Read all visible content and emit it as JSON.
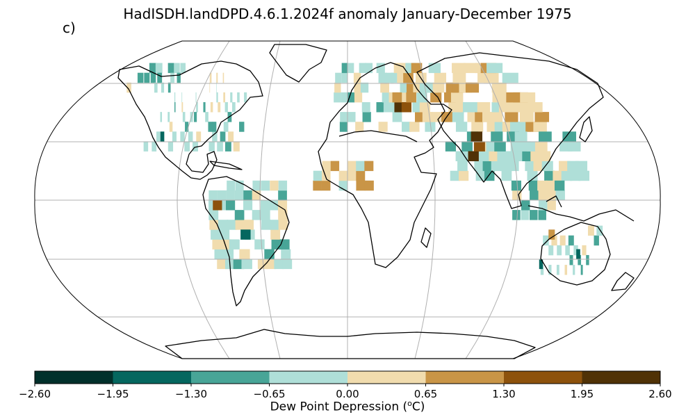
{
  "title": "HadISDH.landDPD.4.6.1.2024f anomaly January-December 1975",
  "panel_label": "c)",
  "colorbar": {
    "label_prefix": "Dew Point Depression (",
    "label_sup": "o",
    "label_suffix": "C)",
    "ticks": [
      "−2.60",
      "−1.95",
      "−1.30",
      "−0.65",
      "0.00",
      "0.65",
      "1.30",
      "1.95",
      "2.60"
    ],
    "colors": [
      "#01302b",
      "#05675f",
      "#48a597",
      "#afdfd8",
      "#f1dcae",
      "#c99547",
      "#8d520c",
      "#503206"
    ]
  },
  "chart_data": {
    "type": "heatmap",
    "projection": "Robinson",
    "variable": "Dew Point Depression anomaly",
    "units": "°C",
    "period": "January-December 1975",
    "scale": {
      "min": -2.6,
      "max": 2.6,
      "step": 0.65
    },
    "grid_resolution_deg": 5,
    "regional_anomalies": [
      {
        "lon": 35,
        "lat": 47.5,
        "value": 2.2
      },
      {
        "lon": 40,
        "lat": 47.5,
        "value": 1.6
      },
      {
        "lon": 45,
        "lat": 52.5,
        "value": 1.0
      },
      {
        "lon": 35,
        "lat": 52.5,
        "value": 1.0
      },
      {
        "lon": 75,
        "lat": 22.5,
        "value": 2.2
      },
      {
        "lon": 80,
        "lat": 27.5,
        "value": 1.6
      },
      {
        "lon": 80,
        "lat": 32.5,
        "value": 2.2
      },
      {
        "lon": 65,
        "lat": 42.5,
        "value": 1.0
      },
      {
        "lon": -100,
        "lat": 42.5,
        "value": -0.9
      },
      {
        "lon": -85,
        "lat": 37.5,
        "value": -1.0
      },
      {
        "lon": -115,
        "lat": 32.5,
        "value": -1.6
      },
      {
        "lon": -60,
        "lat": -17.5,
        "value": -1.6
      },
      {
        "lon": -75,
        "lat": -2.5,
        "value": 1.6
      },
      {
        "lon": 140,
        "lat": -27.5,
        "value": -1.6
      },
      {
        "lon": 120,
        "lat": -32.5,
        "value": -1.6
      },
      {
        "lon": 120,
        "lat": -17.5,
        "value": 1.0
      }
    ]
  }
}
